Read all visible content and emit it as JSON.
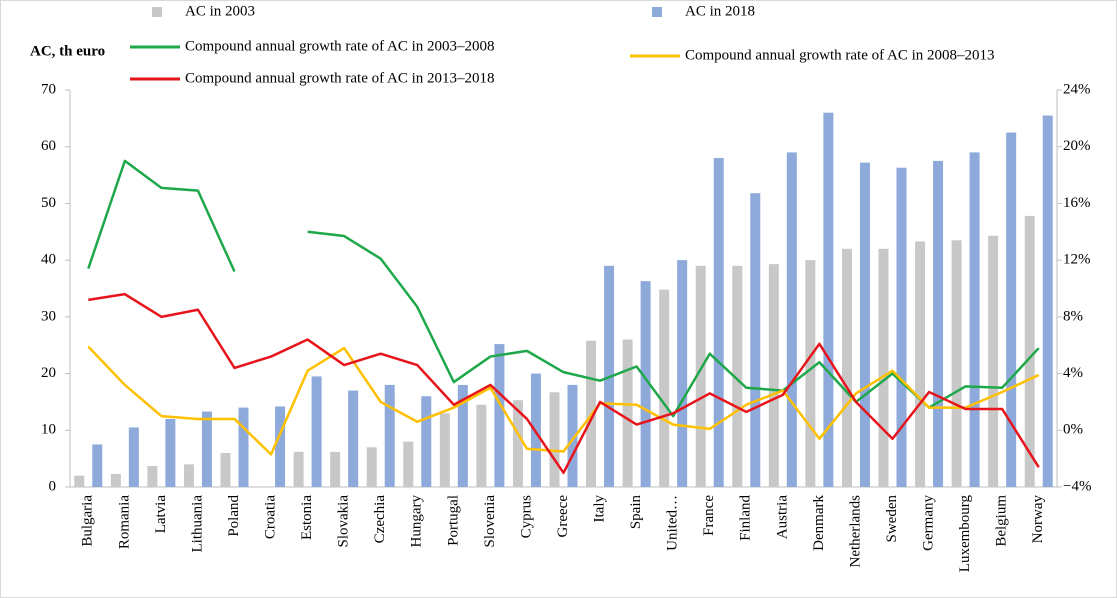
{
  "chart_data": {
    "type": "bar",
    "y_label": "AC, th euro",
    "categories": [
      "Bulgaria",
      "Romania",
      "Latvia",
      "Lithuania",
      "Poland",
      "Croatia",
      "Estonia",
      "Slovakia",
      "Czechia",
      "Hungary",
      "Portugal",
      "Slovenia",
      "Cyprus",
      "Greece",
      "Italy",
      "Spain",
      "United…",
      "France",
      "Finland",
      "Austria",
      "Denmark",
      "Netherlands",
      "Sweden",
      "Germany",
      "Luxembourg",
      "Belgium",
      "Norway"
    ],
    "series": [
      {
        "name": "AC in 2003",
        "type": "bar",
        "axis": "y",
        "color": "#c8c8c8",
        "values": [
          2,
          2.3,
          3.7,
          4,
          6,
          null,
          6.2,
          6.2,
          7,
          8,
          13,
          14.5,
          15.3,
          16.7,
          25.8,
          26,
          34.8,
          39,
          39,
          39.3,
          40,
          42,
          42,
          43.3,
          43.5,
          44.3,
          47.8
        ]
      },
      {
        "name": "AC in 2018",
        "type": "bar",
        "axis": "y",
        "color": "#8eaadb",
        "values": [
          7.5,
          10.5,
          12,
          13.3,
          14,
          14.2,
          19.5,
          17,
          18,
          16,
          18,
          25.2,
          20,
          18,
          39,
          36.3,
          40,
          58,
          51.8,
          59,
          66,
          57.2,
          56.3,
          57.5,
          59,
          62.5,
          65.5
        ]
      },
      {
        "name": "Compound annual growth rate of AC in 2003–2008",
        "type": "line",
        "axis": "y2",
        "color": "#1fa84a",
        "values": [
          11.4,
          19,
          17.1,
          16.9,
          11.2,
          null,
          14,
          13.7,
          12.1,
          8.7,
          3.4,
          5.2,
          5.6,
          4.1,
          3.5,
          4.5,
          1,
          5.4,
          3,
          2.8,
          4.8,
          2,
          4,
          1.6,
          3.1,
          3,
          5.8
        ]
      },
      {
        "name": "Compound annual growth rate of AC in 2008–2013",
        "type": "line",
        "axis": "y2",
        "color": "#ffc000",
        "values": [
          5.9,
          3.2,
          1,
          0.8,
          0.8,
          -1.7,
          4.2,
          5.8,
          2,
          0.6,
          1.6,
          3,
          -1.3,
          -1.5,
          1.9,
          1.8,
          0.4,
          0.1,
          1.8,
          2.8,
          -0.6,
          2.6,
          4.2,
          1.6,
          1.6,
          2.7,
          3.9
        ]
      },
      {
        "name": "Compound annual growth rate of AC in 2013–2018",
        "type": "line",
        "axis": "y2",
        "color": "#e8141c",
        "values": [
          9.2,
          9.6,
          8,
          8.5,
          4.4,
          5.2,
          6.4,
          4.6,
          5.4,
          4.6,
          1.8,
          3.2,
          0.8,
          -3,
          2,
          0.4,
          1.2,
          2.6,
          1.3,
          2.5,
          6.1,
          2,
          -0.6,
          2.7,
          1.5,
          1.5,
          -2.6
        ]
      }
    ],
    "ylim": [
      0,
      70
    ],
    "yticks": [
      0,
      10,
      20,
      30,
      40,
      50,
      60,
      70
    ],
    "y2lim": [
      -4,
      24
    ],
    "y2ticks": [
      {
        "value": -4,
        "label": "−4%"
      },
      {
        "value": 0,
        "label": "0%"
      },
      {
        "value": 4,
        "label": "4%"
      },
      {
        "value": 8,
        "label": "8%"
      },
      {
        "value": 12,
        "label": "12%"
      },
      {
        "value": 16,
        "label": "16%"
      },
      {
        "value": 20,
        "label": "20%"
      },
      {
        "value": 24,
        "label": "24%"
      }
    ],
    "grid": false
  }
}
